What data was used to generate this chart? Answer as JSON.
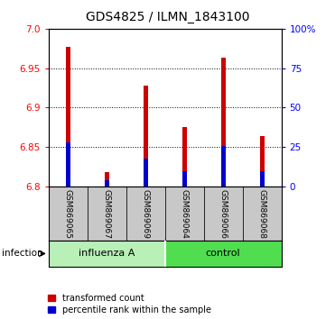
{
  "title": "GDS4825 / ILMN_1843100",
  "samples": [
    "GSM869065",
    "GSM869067",
    "GSM869069",
    "GSM869064",
    "GSM869066",
    "GSM869068"
  ],
  "bar_bottom": 6.8,
  "red_tops": [
    6.977,
    6.818,
    6.928,
    6.876,
    6.963,
    6.864
  ],
  "blue_tops": [
    6.856,
    6.808,
    6.836,
    6.82,
    6.852,
    6.82
  ],
  "ylim_left": [
    6.8,
    7.0
  ],
  "ylim_right": [
    0,
    100
  ],
  "yticks_left": [
    6.8,
    6.85,
    6.9,
    6.95,
    7.0
  ],
  "yticks_right": [
    0,
    25,
    50,
    75,
    100
  ],
  "ytick_labels_right": [
    "0",
    "25",
    "50",
    "75",
    "100%"
  ],
  "red_color": "#CC0000",
  "blue_color": "#0000CC",
  "bar_width": 0.12,
  "blue_bar_width": 0.12,
  "grid_color": "#000000",
  "label_bg_color": "#C8C8C8",
  "group1_color": "#B8F0B8",
  "group2_color": "#50DD50",
  "infection_label": "infection",
  "legend_red": "transformed count",
  "legend_blue": "percentile rank within the sample",
  "title_fontsize": 10,
  "tick_fontsize": 7.5,
  "sample_fontsize": 6.5,
  "group_fontsize": 8,
  "legend_fontsize": 7
}
